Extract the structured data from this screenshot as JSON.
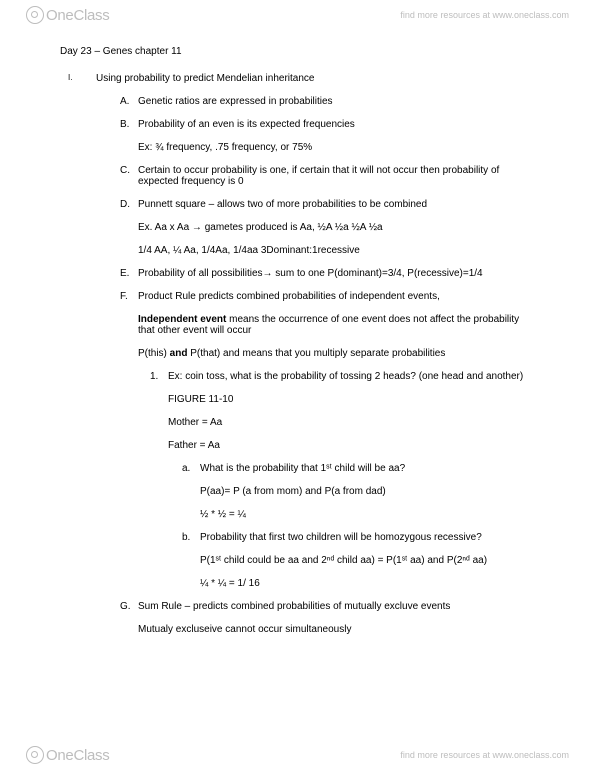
{
  "brand": {
    "logo_one": "One",
    "logo_class": "Class",
    "tagline": "find more resources at www.oneclass.com"
  },
  "title": "Day 23 – Genes chapter 11",
  "roman": {
    "num": "I.",
    "text": "Using probability to predict Mendelian inheritance"
  },
  "A": {
    "letter": "A.",
    "text": "Genetic ratios are expressed in probabilities"
  },
  "B": {
    "letter": "B.",
    "text": "Probability of an even is its expected frequencies"
  },
  "B_ex": "Ex: ¾ frequency, .75 frequency, or 75%",
  "C": {
    "letter": "C.",
    "text": "Certain to occur probability is one, if certain that it will not occur then probability of expected frequency is 0"
  },
  "D": {
    "letter": "D.",
    "text": "Punnett square – allows two of more probabilities to be combined"
  },
  "D_ex1": "Ex. Aa x Aa → gametes produced is Aa, ½A ½a ½A ½a",
  "D_ex2": "1/4 AA, ¼ Aa, 1/4Aa, 1/4aa  3Dominant:1recessive",
  "E": {
    "letter": "E.",
    "text": "Probability of all possibilities→ sum to one  P(dominant)=3/4, P(recessive)=1/4"
  },
  "F": {
    "letter": "F.",
    "text": "Product Rule predicts combined probabilities of independent events,"
  },
  "F_ind_bold": "Independent event",
  "F_ind_rest": " means the occurrence of one event does not affect the probability that other event will occur",
  "F_pthis1": "P(this) ",
  "F_pthis_bold": "and",
  "F_pthis2": " P(that) and means that you multiply separate probabilities",
  "F1": {
    "num": "1.",
    "text": "Ex: coin toss, what is the probability of tossing 2 heads? (one head and another)"
  },
  "F1_fig": "FIGURE  11-10",
  "F1_mom": "Mother = Aa",
  "F1_dad": "Father = Aa",
  "Fa": {
    "letter": "a.",
    "text": "What is the probability that 1ˢᵗ child will be aa?"
  },
  "Fa_l1": "P(aa)= P (a from mom) and P(a from dad)",
  "Fa_l2": "½ * ½ = ¼",
  "Fb": {
    "letter": "b.",
    "text": "Probability that first two children will be homozygous recessive?"
  },
  "Fb_l1": "P(1ˢᵗ child could be aa and 2ⁿᵈ child aa) = P(1ˢᵗ aa) and P(2ⁿᵈ aa)",
  "Fb_l2": "¼ * ¼ = 1/ 16",
  "G": {
    "letter": "G.",
    "text": "Sum Rule – predicts combined probabilities of mutually excluve events"
  },
  "G_sub": "Mutualy excluseive cannot occur simultaneously"
}
